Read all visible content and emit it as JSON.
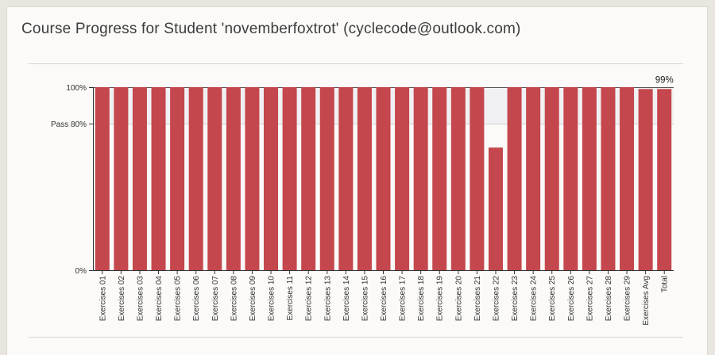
{
  "page": {
    "title": "Course Progress for Student 'novemberfoxtrot' (cyclecode@outlook.com)"
  },
  "colors": {
    "bar": "#c4474d",
    "pass_band": "#f1f0f2",
    "axis": "#333333"
  },
  "chart_data": {
    "type": "bar",
    "categories": [
      "Exercises 01",
      "Exercises 02",
      "Exercises 03",
      "Exercises 04",
      "Exercises 05",
      "Exercises 06",
      "Exercises 07",
      "Exercises 08",
      "Exercises 09",
      "Exercises 10",
      "Exercises 11",
      "Exercises 12",
      "Exercises 13",
      "Exercises 14",
      "Exercises 15",
      "Exercises 16",
      "Exercises 17",
      "Exercises 18",
      "Exercises 19",
      "Exercises 20",
      "Exercises 21",
      "Exercises 22",
      "Exercises 23",
      "Exercises 24",
      "Exercises 25",
      "Exercises 26",
      "Exercises 27",
      "Exercises 28",
      "Exercises 29",
      "Exercises Avg",
      "Total"
    ],
    "values": [
      100,
      100,
      100,
      100,
      100,
      100,
      100,
      100,
      100,
      100,
      100,
      100,
      100,
      100,
      100,
      100,
      100,
      100,
      100,
      100,
      100,
      67,
      100,
      100,
      100,
      100,
      100,
      100,
      100,
      99,
      99
    ],
    "ylim": [
      0,
      100
    ],
    "yticks": [
      {
        "value": 100,
        "label": "100%"
      },
      {
        "value": 80,
        "label": "Pass 80%"
      },
      {
        "value": 0,
        "label": "0%"
      }
    ],
    "pass_threshold": 80,
    "total_label": "99%"
  }
}
